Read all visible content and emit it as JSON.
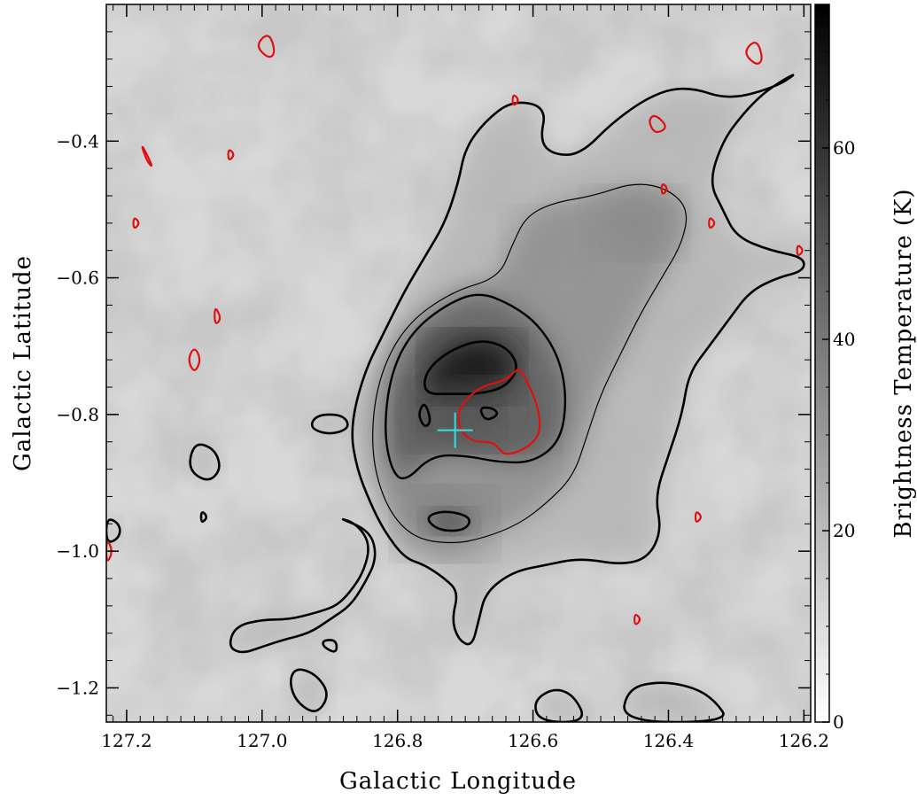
{
  "chart_data": {
    "type": "heatmap",
    "title": "",
    "xlabel": "Galactic Longitude",
    "ylabel": "Galactic Latitude",
    "colorbar_label": "Brightness Temperature (K)",
    "xlim": [
      127.23,
      126.19
    ],
    "ylim": [
      -1.25,
      -0.2
    ],
    "x_ticks": [
      127.2,
      127.0,
      126.8,
      126.6,
      126.4,
      126.2
    ],
    "x_tick_labels": [
      "127.2",
      "127.0",
      "126.8",
      "126.6",
      "126.4",
      "126.2"
    ],
    "y_ticks": [
      -0.4,
      -0.6,
      -0.8,
      -1.0,
      -1.2
    ],
    "y_tick_labels": [
      "−0.4",
      "−0.6",
      "−0.8",
      "−1.0",
      "−1.2"
    ],
    "colorbar_range": [
      0,
      75
    ],
    "colorbar_ticks": [
      0,
      20,
      40,
      60
    ],
    "colorbar_tick_labels": [
      "0",
      "20",
      "40",
      "60"
    ],
    "colormap": "white-to-black",
    "grid": false,
    "intensity_peaks": [
      {
        "l": 126.69,
        "b": -0.73,
        "T": 75
      },
      {
        "l": 126.72,
        "b": -0.8,
        "T": 58
      },
      {
        "l": 126.64,
        "b": -0.8,
        "T": 50
      },
      {
        "l": 126.73,
        "b": -0.96,
        "T": 45
      },
      {
        "l": 126.45,
        "b": -0.52,
        "T": 38
      },
      {
        "l": 126.57,
        "b": -0.55,
        "T": 32
      }
    ],
    "black_contours": [
      {
        "level": "outer",
        "points": [
          [
            126.79,
            -1.01
          ],
          [
            126.76,
            -1.02
          ],
          [
            126.73,
            -1.04
          ],
          [
            126.71,
            -1.06
          ],
          [
            126.72,
            -1.1
          ],
          [
            126.71,
            -1.13
          ],
          [
            126.69,
            -1.14
          ],
          [
            126.68,
            -1.1
          ],
          [
            126.67,
            -1.06
          ],
          [
            126.63,
            -1.03
          ],
          [
            126.58,
            -1.02
          ],
          [
            126.53,
            -1.01
          ],
          [
            126.47,
            -1.02
          ],
          [
            126.43,
            -1.01
          ],
          [
            126.41,
            -0.97
          ],
          [
            126.42,
            -0.92
          ],
          [
            126.4,
            -0.86
          ],
          [
            126.38,
            -0.8
          ],
          [
            126.37,
            -0.74
          ],
          [
            126.34,
            -0.7
          ],
          [
            126.31,
            -0.66
          ],
          [
            126.28,
            -0.62
          ],
          [
            126.24,
            -0.6
          ],
          [
            126.2,
            -0.59
          ],
          [
            126.2,
            -0.57
          ],
          [
            126.25,
            -0.56
          ],
          [
            126.3,
            -0.54
          ],
          [
            126.32,
            -0.5
          ],
          [
            126.34,
            -0.46
          ],
          [
            126.32,
            -0.4
          ],
          [
            126.29,
            -0.36
          ],
          [
            126.26,
            -0.33
          ],
          [
            126.23,
            -0.31
          ],
          [
            126.21,
            -0.3
          ],
          [
            126.24,
            -0.32
          ],
          [
            126.31,
            -0.34
          ],
          [
            126.37,
            -0.32
          ],
          [
            126.42,
            -0.33
          ],
          [
            126.48,
            -0.37
          ],
          [
            126.53,
            -0.42
          ],
          [
            126.57,
            -0.42
          ],
          [
            126.59,
            -0.4
          ],
          [
            126.58,
            -0.35
          ],
          [
            126.63,
            -0.34
          ],
          [
            126.67,
            -0.37
          ],
          [
            126.7,
            -0.41
          ],
          [
            126.71,
            -0.46
          ],
          [
            126.73,
            -0.52
          ],
          [
            126.76,
            -0.57
          ],
          [
            126.79,
            -0.62
          ],
          [
            126.82,
            -0.68
          ],
          [
            126.85,
            -0.74
          ],
          [
            126.87,
            -0.82
          ],
          [
            126.86,
            -0.88
          ],
          [
            126.84,
            -0.93
          ],
          [
            126.82,
            -0.97
          ]
        ]
      },
      {
        "level": "inner",
        "points": [
          [
            126.72,
            -0.99
          ],
          [
            126.67,
            -0.98
          ],
          [
            126.62,
            -0.96
          ],
          [
            126.58,
            -0.93
          ],
          [
            126.54,
            -0.89
          ],
          [
            126.52,
            -0.83
          ],
          [
            126.5,
            -0.77
          ],
          [
            126.47,
            -0.71
          ],
          [
            126.44,
            -0.65
          ],
          [
            126.41,
            -0.6
          ],
          [
            126.38,
            -0.55
          ],
          [
            126.37,
            -0.5
          ],
          [
            126.4,
            -0.47
          ],
          [
            126.45,
            -0.46
          ],
          [
            126.51,
            -0.48
          ],
          [
            126.57,
            -0.49
          ],
          [
            126.61,
            -0.51
          ],
          [
            126.63,
            -0.55
          ],
          [
            126.65,
            -0.6
          ],
          [
            126.72,
            -0.62
          ],
          [
            126.79,
            -0.67
          ],
          [
            126.83,
            -0.75
          ],
          [
            126.84,
            -0.85
          ],
          [
            126.82,
            -0.93
          ],
          [
            126.78,
            -0.98
          ]
        ]
      },
      {
        "level": "middle",
        "points": [
          [
            126.79,
            -0.9
          ],
          [
            126.75,
            -0.86
          ],
          [
            126.7,
            -0.86
          ],
          [
            126.65,
            -0.87
          ],
          [
            126.6,
            -0.87
          ],
          [
            126.56,
            -0.84
          ],
          [
            126.55,
            -0.78
          ],
          [
            126.56,
            -0.72
          ],
          [
            126.59,
            -0.67
          ],
          [
            126.63,
            -0.64
          ],
          [
            126.68,
            -0.62
          ],
          [
            126.73,
            -0.64
          ],
          [
            126.78,
            -0.68
          ],
          [
            126.81,
            -0.74
          ],
          [
            126.82,
            -0.82
          ],
          [
            126.81,
            -0.88
          ]
        ]
      },
      {
        "level": "peak",
        "points": [
          [
            126.76,
            -0.77
          ],
          [
            126.72,
            -0.77
          ],
          [
            126.68,
            -0.77
          ],
          [
            126.64,
            -0.76
          ],
          [
            126.62,
            -0.73
          ],
          [
            126.64,
            -0.7
          ],
          [
            126.68,
            -0.69
          ],
          [
            126.73,
            -0.71
          ],
          [
            126.76,
            -0.74
          ]
        ]
      },
      {
        "level": "peak",
        "points": [
          [
            126.76,
            -0.95
          ],
          [
            126.73,
            -0.94
          ],
          [
            126.69,
            -0.95
          ],
          [
            126.7,
            -0.97
          ],
          [
            126.74,
            -0.97
          ]
        ]
      },
      {
        "level": "peak",
        "points": [
          [
            126.76,
            -0.78
          ],
          [
            126.75,
            -0.81
          ],
          [
            126.76,
            -0.82
          ],
          [
            126.77,
            -0.8
          ]
        ]
      },
      {
        "level": "peak",
        "points": [
          [
            126.68,
            -0.79
          ],
          [
            126.66,
            -0.79
          ],
          [
            126.65,
            -0.8
          ],
          [
            126.67,
            -0.81
          ]
        ]
      },
      {
        "level": "outer",
        "points": [
          [
            126.92,
            -0.8
          ],
          [
            126.88,
            -0.8
          ],
          [
            126.87,
            -0.82
          ],
          [
            126.9,
            -0.83
          ],
          [
            126.93,
            -0.82
          ]
        ]
      },
      {
        "level": "outer",
        "points": [
          [
            127.1,
            -0.84
          ],
          [
            127.07,
            -0.85
          ],
          [
            127.06,
            -0.88
          ],
          [
            127.08,
            -0.9
          ],
          [
            127.11,
            -0.88
          ]
        ]
      },
      {
        "level": "outer",
        "points": [
          [
            127.09,
            -0.94
          ],
          [
            127.08,
            -0.95
          ],
          [
            127.09,
            -0.96
          ]
        ]
      },
      {
        "level": "outer",
        "points": [
          [
            127.23,
            -0.95
          ],
          [
            127.21,
            -0.96
          ],
          [
            127.21,
            -0.98
          ],
          [
            127.23,
            -0.99
          ]
        ]
      },
      {
        "level": "outer",
        "points": [
          [
            126.89,
            -0.95
          ],
          [
            126.86,
            -0.96
          ],
          [
            126.84,
            -0.99
          ],
          [
            126.85,
            -1.03
          ],
          [
            126.87,
            -1.06
          ],
          [
            126.89,
            -1.08
          ],
          [
            126.92,
            -1.09
          ],
          [
            126.96,
            -1.1
          ],
          [
            127.0,
            -1.1
          ],
          [
            127.04,
            -1.11
          ],
          [
            127.05,
            -1.14
          ],
          [
            127.03,
            -1.15
          ],
          [
            127.0,
            -1.14
          ],
          [
            126.97,
            -1.13
          ],
          [
            126.93,
            -1.12
          ],
          [
            126.9,
            -1.1
          ],
          [
            126.87,
            -1.08
          ],
          [
            126.85,
            -1.05
          ],
          [
            126.83,
            -1.01
          ],
          [
            126.84,
            -0.97
          ]
        ]
      },
      {
        "level": "outer",
        "points": [
          [
            126.91,
            -1.13
          ],
          [
            126.89,
            -1.13
          ],
          [
            126.89,
            -1.15
          ],
          [
            126.91,
            -1.14
          ]
        ]
      },
      {
        "level": "outer",
        "points": [
          [
            126.95,
            -1.17
          ],
          [
            126.92,
            -1.18
          ],
          [
            126.9,
            -1.21
          ],
          [
            126.92,
            -1.24
          ],
          [
            126.95,
            -1.22
          ],
          [
            126.96,
            -1.19
          ]
        ]
      },
      {
        "level": "outer",
        "points": [
          [
            126.59,
            -1.25
          ],
          [
            126.6,
            -1.22
          ],
          [
            126.57,
            -1.2
          ],
          [
            126.54,
            -1.21
          ],
          [
            126.52,
            -1.25
          ]
        ]
      },
      {
        "level": "outer",
        "points": [
          [
            126.47,
            -1.25
          ],
          [
            126.46,
            -1.2
          ],
          [
            126.41,
            -1.19
          ],
          [
            126.36,
            -1.2
          ],
          [
            126.33,
            -1.22
          ],
          [
            126.31,
            -1.25
          ]
        ]
      }
    ],
    "red_contours": [
      {
        "name": "central",
        "points": [
          [
            126.68,
            -0.76
          ],
          [
            126.64,
            -0.75
          ],
          [
            126.62,
            -0.73
          ],
          [
            126.61,
            -0.75
          ],
          [
            126.6,
            -0.77
          ],
          [
            126.59,
            -0.8
          ],
          [
            126.59,
            -0.83
          ],
          [
            126.61,
            -0.85
          ],
          [
            126.64,
            -0.86
          ],
          [
            126.65,
            -0.85
          ],
          [
            126.66,
            -0.84
          ],
          [
            126.69,
            -0.84
          ],
          [
            126.71,
            -0.82
          ],
          [
            126.71,
            -0.79
          ]
        ]
      },
      {
        "name": "blob",
        "points": [
          [
            126.99,
            -0.24
          ],
          [
            126.98,
            -0.27
          ],
          [
            126.99,
            -0.28
          ],
          [
            127.01,
            -0.26
          ]
        ]
      },
      {
        "name": "blob",
        "points": [
          [
            126.27,
            -0.25
          ],
          [
            126.26,
            -0.28
          ],
          [
            126.27,
            -0.29
          ],
          [
            126.29,
            -0.27
          ]
        ]
      },
      {
        "name": "blob",
        "points": [
          [
            126.63,
            -0.33
          ],
          [
            126.62,
            -0.34
          ],
          [
            126.63,
            -0.35
          ]
        ]
      },
      {
        "name": "blob",
        "points": [
          [
            126.42,
            -0.36
          ],
          [
            126.4,
            -0.38
          ],
          [
            126.42,
            -0.39
          ],
          [
            126.43,
            -0.37
          ]
        ]
      },
      {
        "name": "blob",
        "points": [
          [
            127.18,
            -0.4
          ],
          [
            127.16,
            -0.44
          ],
          [
            127.17,
            -0.43
          ]
        ]
      },
      {
        "name": "blob",
        "points": [
          [
            127.05,
            -0.41
          ],
          [
            127.04,
            -0.42
          ],
          [
            127.05,
            -0.43
          ]
        ]
      },
      {
        "name": "blob",
        "points": [
          [
            126.41,
            -0.46
          ],
          [
            126.4,
            -0.47
          ],
          [
            126.41,
            -0.48
          ]
        ]
      },
      {
        "name": "blob",
        "points": [
          [
            127.19,
            -0.51
          ],
          [
            127.18,
            -0.52
          ],
          [
            127.19,
            -0.53
          ]
        ]
      },
      {
        "name": "blob",
        "points": [
          [
            126.34,
            -0.51
          ],
          [
            126.33,
            -0.52
          ],
          [
            126.34,
            -0.53
          ]
        ]
      },
      {
        "name": "blob",
        "points": [
          [
            126.21,
            -0.55
          ],
          [
            126.2,
            -0.56
          ],
          [
            126.21,
            -0.57
          ]
        ]
      },
      {
        "name": "blob",
        "points": [
          [
            127.07,
            -0.64
          ],
          [
            127.06,
            -0.66
          ],
          [
            127.07,
            -0.67
          ]
        ]
      },
      {
        "name": "blob",
        "points": [
          [
            127.1,
            -0.7
          ],
          [
            127.09,
            -0.72
          ],
          [
            127.1,
            -0.74
          ],
          [
            127.11,
            -0.72
          ]
        ]
      },
      {
        "name": "blob",
        "points": [
          [
            126.36,
            -0.94
          ],
          [
            126.35,
            -0.95
          ],
          [
            126.36,
            -0.96
          ]
        ]
      },
      {
        "name": "blob",
        "points": [
          [
            127.23,
            -0.98
          ],
          [
            127.22,
            -1.0
          ],
          [
            127.23,
            -1.02
          ]
        ]
      },
      {
        "name": "blob",
        "points": [
          [
            126.45,
            -1.09
          ],
          [
            126.44,
            -1.1
          ],
          [
            126.45,
            -1.11
          ]
        ]
      }
    ],
    "marker": {
      "type": "cross",
      "color": "#33e0e0",
      "l": 126.715,
      "b": -0.823
    }
  }
}
